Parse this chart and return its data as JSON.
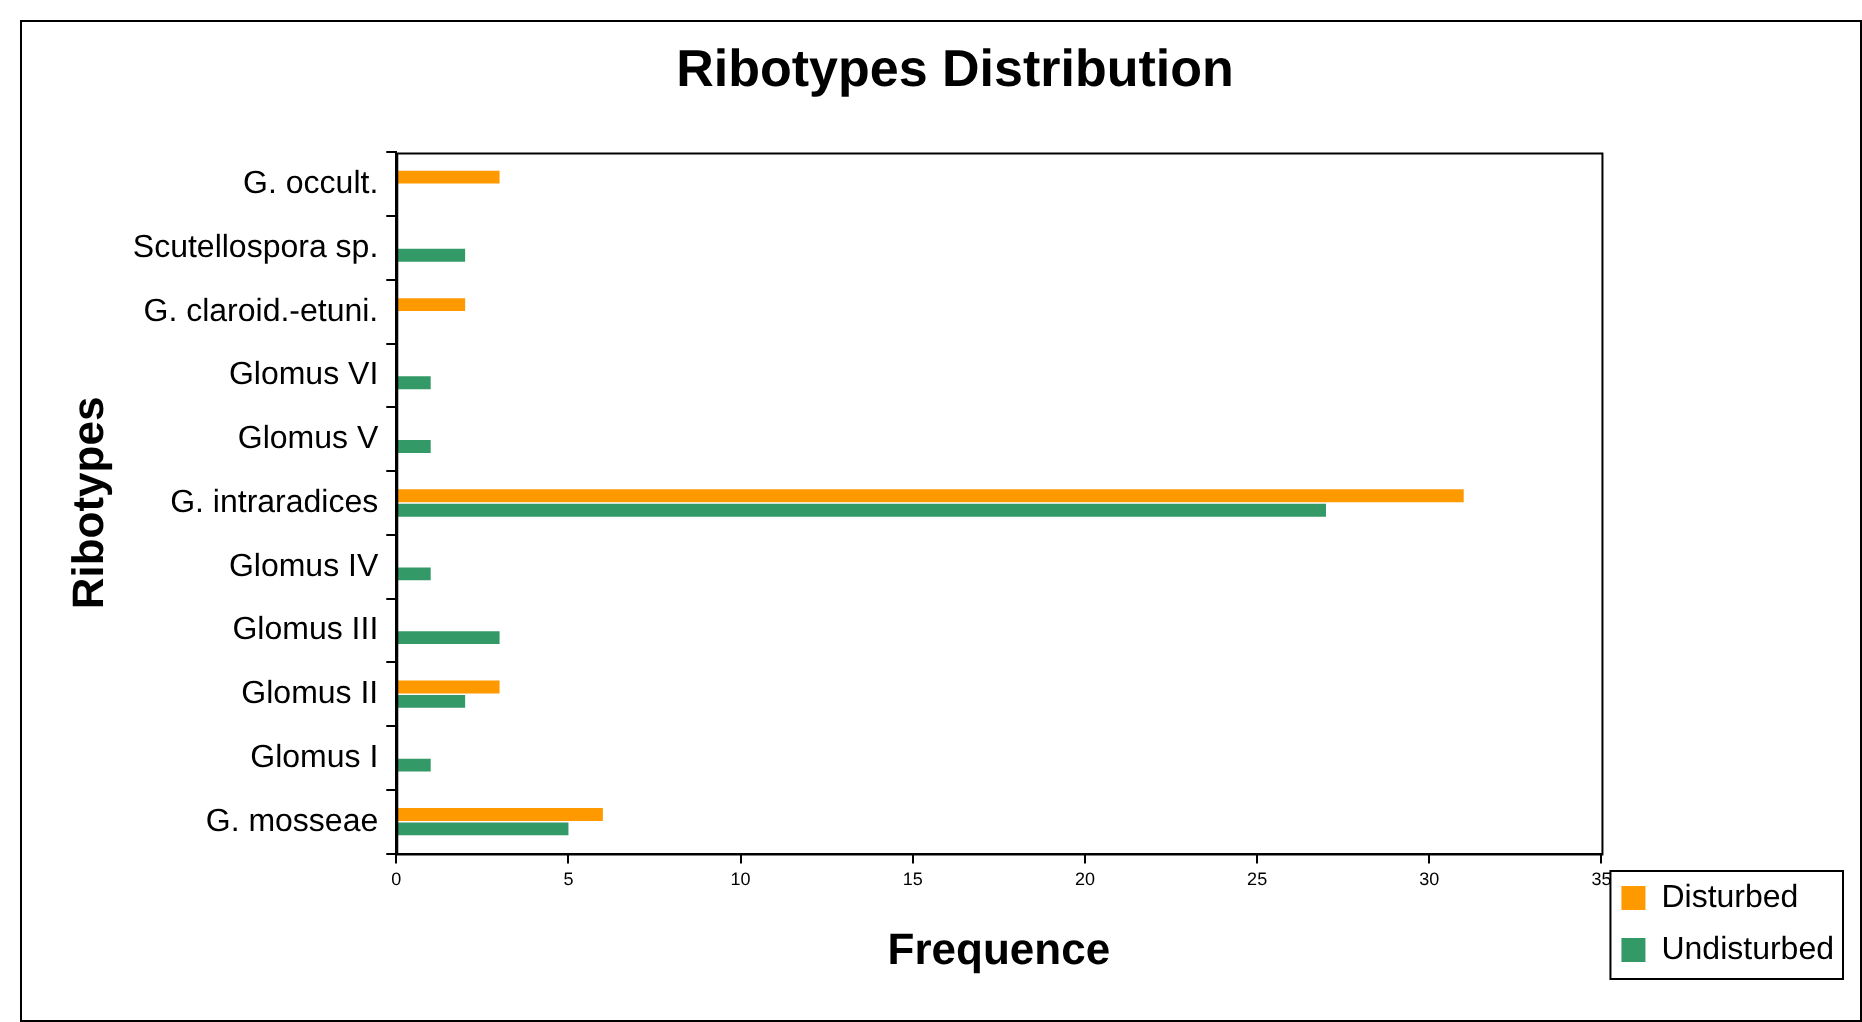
{
  "chart_data": {
    "type": "bar",
    "orientation": "horizontal",
    "title": "Ribotypes Distribution",
    "xlabel": "Frequence",
    "ylabel": "Ribotypes",
    "categories": [
      "G. occult.",
      "Scutellospora sp.",
      "G. claroid.-etuni.",
      "Glomus VI",
      "Glomus V",
      "G. intraradices",
      "Glomus IV",
      "Glomus III",
      "Glomus II",
      "Glomus I",
      "G. mosseae"
    ],
    "series": [
      {
        "name": "Disturbed",
        "color": "#ff9900",
        "values": [
          3,
          0,
          2,
          0,
          0,
          31,
          0,
          0,
          3,
          0,
          6
        ]
      },
      {
        "name": "Undisturbed",
        "color": "#339966",
        "values": [
          0,
          2,
          0,
          1,
          1,
          27,
          1,
          3,
          2,
          1,
          5
        ]
      }
    ],
    "xlim": [
      0,
      35
    ],
    "xticks": [
      0,
      5,
      10,
      15,
      20,
      25,
      30,
      35
    ],
    "grid": false,
    "legend": "bottom right"
  }
}
